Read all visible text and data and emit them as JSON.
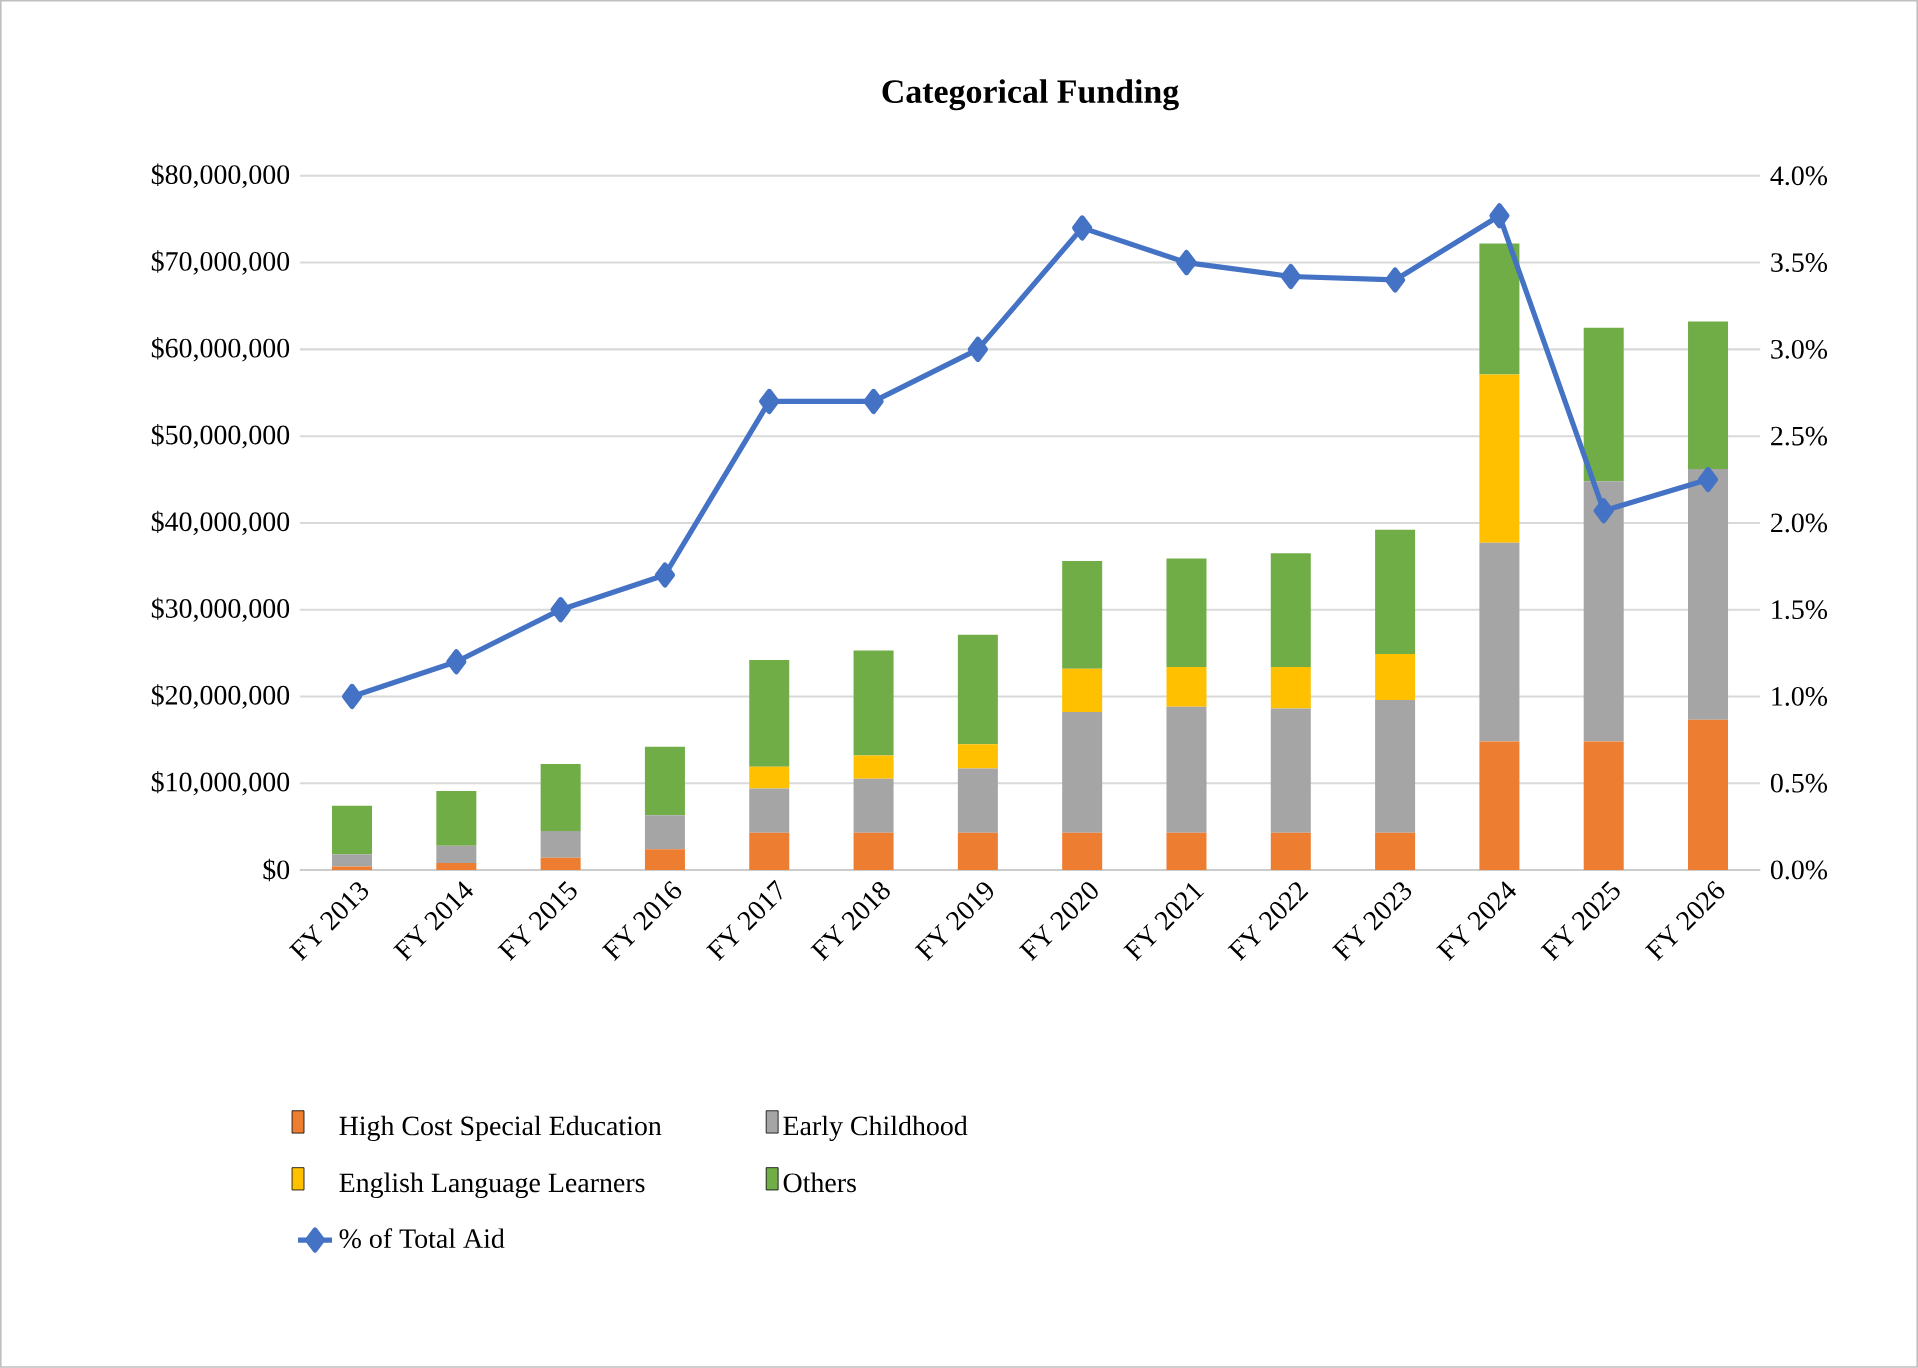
{
  "chart_data": {
    "type": "bar",
    "stacked": true,
    "title": "Categorical Funding",
    "categories": [
      "FY 2013",
      "FY 2014",
      "FY 2015",
      "FY 2016",
      "FY 2017",
      "FY 2018",
      "FY 2019",
      "FY 2020",
      "FY 2021",
      "FY 2022",
      "FY 2023",
      "FY 2024",
      "FY 2025",
      "FY 2026"
    ],
    "series": [
      {
        "name": "High Cost Special Education",
        "color": "#ed7d31",
        "values": [
          400000,
          800000,
          1400000,
          2400000,
          4300000,
          4300000,
          4300000,
          4300000,
          4300000,
          4300000,
          4300000,
          14800000,
          14800000,
          17300000
        ]
      },
      {
        "name": "Early Childhood",
        "color": "#a5a5a5",
        "values": [
          1400000,
          2000000,
          3100000,
          3900000,
          5100000,
          6200000,
          7400000,
          13900000,
          14500000,
          14300000,
          15300000,
          22900000,
          30000000,
          28900000
        ]
      },
      {
        "name": "English Language Learners",
        "color": "#ffc000",
        "values": [
          0,
          0,
          0,
          0,
          2500000,
          2700000,
          2800000,
          5000000,
          4600000,
          4800000,
          5300000,
          19400000,
          0,
          0
        ]
      },
      {
        "name": "Others",
        "color": "#70ad47",
        "values": [
          5600000,
          6300000,
          7700000,
          7900000,
          12300000,
          12100000,
          12600000,
          12400000,
          12500000,
          13100000,
          14300000,
          15100000,
          17700000,
          17000000
        ]
      },
      {
        "name": "% of Total Aid",
        "type": "line",
        "axis": "y2",
        "marker": "diamond",
        "color": "#4472c4",
        "values": [
          1.0,
          1.2,
          1.5,
          1.7,
          2.7,
          2.7,
          3.0,
          3.7,
          3.5,
          3.42,
          3.4,
          3.77,
          2.07,
          2.25
        ]
      }
    ],
    "ylim": [
      0,
      80000000
    ],
    "yticks": [
      {
        "value": 0,
        "label": "$0"
      },
      {
        "value": 10000000,
        "label": "$10,000,000"
      },
      {
        "value": 20000000,
        "label": "$20,000,000"
      },
      {
        "value": 30000000,
        "label": "$30,000,000"
      },
      {
        "value": 40000000,
        "label": "$40,000,000"
      },
      {
        "value": 50000000,
        "label": "$50,000,000"
      },
      {
        "value": 60000000,
        "label": "$60,000,000"
      },
      {
        "value": 70000000,
        "label": "$70,000,000"
      },
      {
        "value": 80000000,
        "label": "$80,000,000"
      }
    ],
    "y2lim": [
      0,
      4
    ],
    "y2ticks": [
      {
        "value": 0,
        "label": "0.0%"
      },
      {
        "value": 0.5,
        "label": "0.5%"
      },
      {
        "value": 1,
        "label": "1.0%"
      },
      {
        "value": 1.5,
        "label": "1.5%"
      },
      {
        "value": 2,
        "label": "2.0%"
      },
      {
        "value": 2.5,
        "label": "2.5%"
      },
      {
        "value": 3,
        "label": "3.0%"
      },
      {
        "value": 3.5,
        "label": "3.5%"
      },
      {
        "value": 4,
        "label": "4.0%"
      }
    ],
    "grid": "y",
    "legend": "bottom"
  }
}
